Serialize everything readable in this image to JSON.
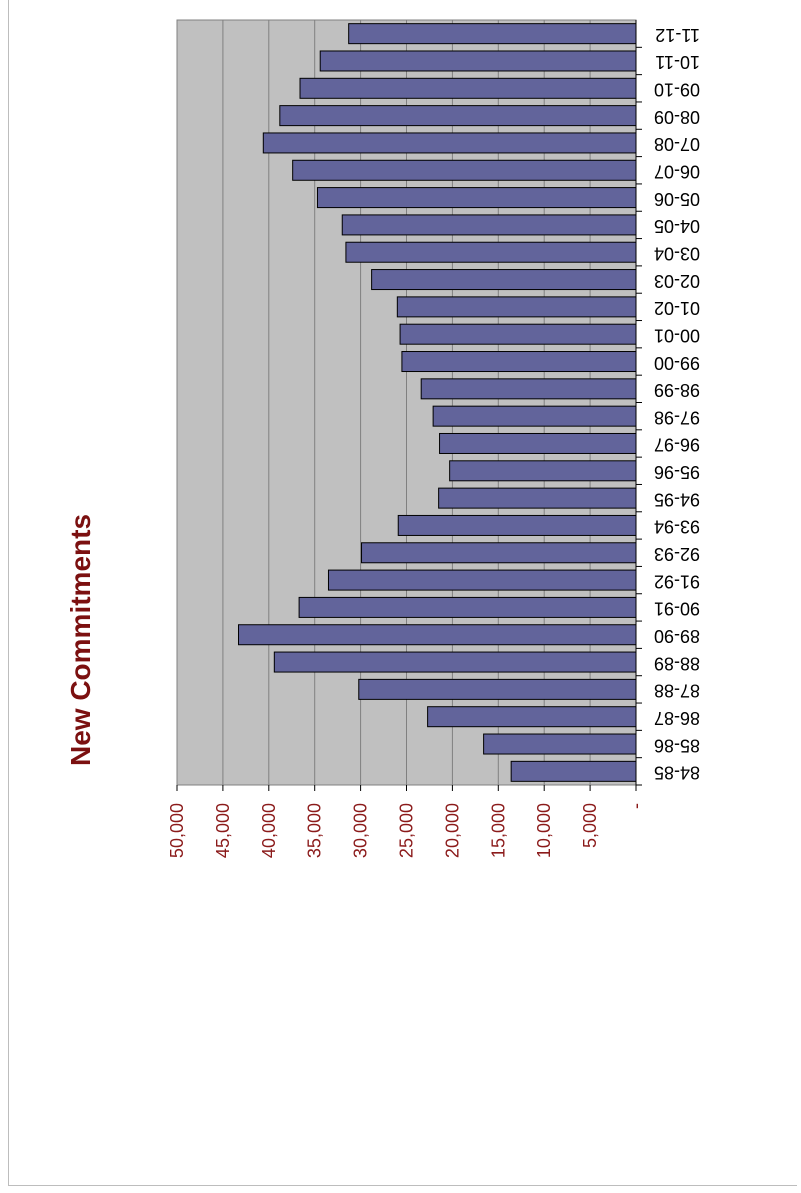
{
  "chart_data": {
    "type": "bar",
    "title": "New Commitments",
    "xlabel": "",
    "ylabel": "",
    "categories": [
      "84-85",
      "85-86",
      "86-87",
      "87-88",
      "88-89",
      "89-90",
      "90-91",
      "91-92",
      "92-93",
      "93-94",
      "94-95",
      "95-96",
      "96-97",
      "97-98",
      "98-99",
      "99-00",
      "00-01",
      "01-02",
      "02-03",
      "03-04",
      "04-05",
      "05-06",
      "06-07",
      "07-08",
      "08-09",
      "09-10",
      "10-11",
      "11-12"
    ],
    "values": [
      13600,
      16600,
      22700,
      30200,
      39400,
      43300,
      36700,
      33500,
      29900,
      25900,
      21500,
      20300,
      21400,
      22100,
      23400,
      25500,
      25700,
      26000,
      28800,
      31600,
      32000,
      34700,
      37400,
      40600,
      38800,
      36600,
      34400,
      31300
    ],
    "ylim": [
      0,
      50000
    ],
    "yticks": [
      "-",
      "5,000",
      "10,000",
      "15,000",
      "20,000",
      "25,000",
      "30,000",
      "35,000",
      "40,000",
      "45,000",
      "50,000"
    ],
    "grid": true,
    "colors": {
      "bar": "#62649b",
      "plot_bg": "#c0c0c0",
      "title": "#7b1010",
      "tick_labels": "#8b1a1a"
    }
  }
}
